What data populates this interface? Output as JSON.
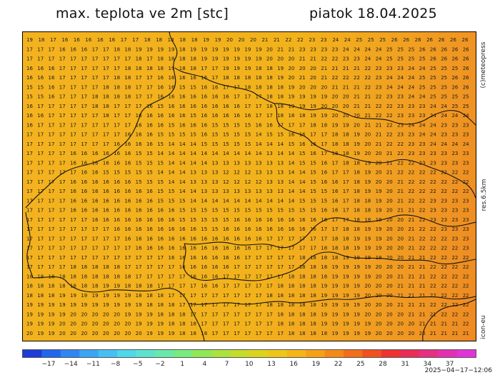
{
  "header": {
    "title": "max. teplota ve 2m [stc]",
    "date": "piatok 18.04.2025"
  },
  "side_labels": {
    "copyright": "(c)meteopress",
    "resolution": "res.6.5km",
    "model": "icon-eu"
  },
  "map": {
    "grid_rows": [
      "19 18 17 16 16 16 16 16 17 17 18 18 18 18 18 19 19 20 20 20 21 21 22 22 23 23 24 24 25 25 25 26 26 26 26 26 26 26",
      "17 17 17 16 16 16 17 17 18 18 19 19 19 19 18 19 19 19 19 19 19 19 20 21 21 23 23 23 23 24 24 24 24 25 25 25 26 26 26 26 26",
      "17 17 17 17 17 17 17 17 17 17 18 17 18 18 18 18 19 19 19 19 19 19 20 20 20 21 21 22 22 23 23 24 24 25 25 25 25 26 26 26 26",
      "16 16 16 17 17 17 17 17 17 18 18 18 18 19 18 18 17 17 19 19 19 18 18 19 20 20 20 21 21 21 21 22 23 23 23 24 24 25 25 25 26",
      "16 16 16 17 17 17 17 17 18 18 17 17 16 16 16 16 16 17 18 18 18 18 18 19 20 21 20 21 22 22 22 22 23 24 24 24 25 25 25 26 26",
      "15 15 16 17 17 17 17 18 18 18 17 17 16 16 15 15 16 16 17 17 18 18 18 18 19 20 20 20 21 21 21 22 23 24 24 24 25 25 25 26 26",
      "15 15 16 17 17 17 18 18 18 18 17 17 16 16 16 16 16 16 16 17 17 17 18 18 19 19 19 19 20 20 21 21 22 23 23 24 24 25 25 25 25",
      "16 17 17 17 17 17 18 18 17 17 17 16 15 16 16 16 16 16 16 16 17 17 18 18 19 19 19 20 20 20 21 21 22 22 23 23 23 24 24 25 25",
      "16 16 17 17 17 17 17 18 17 17 16 16 16 16 16 15 16 16 16 16 16 17 17 18 18 18 19 19 20 20 20 21 22 22 23 23 23 24 24 24 24",
      "16 17 17 17 17 17 17 17 17 17 16 16 16 15 16 16 16 15 15 15 15 16 16 17 17 17 18 18 19 19 20 21 21 22 23 24 24 24 23 23 23",
      "17 17 17 17 17 17 17 17 17 16 16 16 15 15 15 15 16 15 15 15 15 14 15 15 16 16 17 17 18 18 19 20 21 22 23 23 24 24 23 23 23",
      "17 17 17 17 17 17 17 17 16 16 16 16 15 14 14 14 15 15 15 15 15 14 14 14 15 16 16 17 18 18 19 20 21 22 22 23 23 24 24 24 24",
      "17 17 17 17 16 16 16 16 16 16 15 15 14 14 14 14 14 14 14 14 14 14 13 14 14 15 16 17 18 18 19 20 20 21 22 23 23 23 23 23 23",
      "17 17 17 17 16 16 16 16 16 16 15 15 15 14 14 14 14 13 13 13 13 13 13 13 14 15 15 16 17 18 18 19 20 21 22 22 23 23 23 23 23",
      "17 17 17 17 17 16 16 15 15 15 15 15 14 14 14 13 13 13 12 12 12 13 13 13 14 14 15 16 17 17 18 19 20 21 22 22 22 22 22 22 22",
      "17 17 17 17 16 16 16 16 16 16 15 15 15 14 14 13 13 13 12 12 12 12 13 13 14 14 15 16 16 17 18 19 20 20 21 22 22 22 22 22 22",
      "17 17 17 17 16 16 16 16 16 16 16 16 15 15 14 14 13 13 13 13 13 13 13 13 14 14 15 15 16 17 18 19 19 20 21 22 22 22 22 22 22",
      "17 17 17 17 16 16 16 16 16 16 16 16 15 15 15 14 14 14 14 14 14 14 14 14 14 15 15 15 16 17 18 18 19 20 21 22 22 23 23 23 23",
      "17 17 17 17 16 16 16 16 16 16 16 16 16 16 15 15 15 15 15 15 15 15 15 15 15 15 15 16 16 17 18 18 19 20 21 21 22 23 23 23 23",
      "17 17 17 17 17 17 16 16 16 16 16 16 16 16 15 15 15 15 15 16 16 16 16 16 16 16 16 16 17 17 18 18 19 20 20 21 22 23 23 23 23",
      "17 17 17 17 17 17 17 17 16 16 16 16 16 16 16 16 15 15 16 16 16 16 16 16 16 16 16 17 17 18 18 19 19 20 20 21 22 22 23 23 23",
      "17 17 17 17 17 17 17 17 17 16 16 16 16 16 16 16 16 16 16 16 16 16 17 17 17 17 17 17 18 18 19 19 19 20 20 21 22 22 22 23 23",
      "17 17 17 17 17 17 17 17 17 17 16 16 16 16 16 16 16 16 16 16 16 17 17 17 17 17 17 18 18 18 19 19 19 20 20 21 22 22 22 22 23",
      "17 17 17 17 17 17 17 17 17 17 17 17 17 16 16 16 16 16 16 16 17 17 17 17 17 18 18 18 18 19 19 19 19 20 20 21 21 22 22 22 22",
      "17 17 17 17 18 18 18 18 18 17 17 17 17 17 16 16 16 16 16 17 17 17 17 17 17 18 18 18 19 19 19 19 20 20 20 21 21 22 22 22 22",
      "18 18 18 18 18 18 18 18 18 18 17 17 17 17 17 16 16 16 17 17 17 17 17 17 18 18 18 18 19 19 19 19 20 20 21 21 21 22 22 22 22",
      "18 18 18 18 18 18 18 19 19 18 18 18 17 17 17 17 16 16 17 17 17 17 17 18 18 18 18 19 19 19 19 20 20 20 21 21 21 22 22 22 22",
      "18 18 18 19 19 19 19 19 19 19 18 18 18 17 17 17 17 17 17 17 17 17 18 18 18 18 18 19 19 19 19 20 20 20 21 21 21 22 22 22 22",
      "19 19 19 19 19 19 19 19 19 19 19 18 18 18 17 17 17 17 17 17 17 17 18 18 18 18 18 19 19 19 19 20 20 20 21 21 21 22 22 22 22",
      "19 19 19 19 20 20 20 20 20 19 19 19 18 18 18 17 17 17 17 17 17 17 17 18 18 18 18 19 19 19 19 20 20 20 20 21 21 21 22 22 22",
      "19 19 19 20 20 20 20 20 20 20 19 19 19 18 18 18 17 17 17 17 17 17 17 18 18 18 18 19 19 19 19 19 20 20 20 20 21 21 21 21 22",
      "20 19 19 20 20 20 20 20 20 20 20 19 19 19 18 18 18 17 17 17 17 17 17 17 18 18 18 18 19 19 19 19 20 20 20 20 20 21 21 21 21"
    ],
    "boundary_color": "#111111"
  },
  "legend": {
    "tick_labels": [
      "−17",
      "−14",
      "−11",
      "−8",
      "−5",
      "−2",
      "1",
      "4",
      "7",
      "10",
      "13",
      "16",
      "19",
      "22",
      "25",
      "28",
      "31",
      "34",
      "37"
    ],
    "colors": [
      "#1c3dd8",
      "#2266ee",
      "#2f86f3",
      "#3aa4f6",
      "#45bff5",
      "#4fd7ec",
      "#5be3cf",
      "#69e8aa",
      "#79ea7e",
      "#8fe855",
      "#abe23c",
      "#c6dc2c",
      "#dcd31f",
      "#eec618",
      "#f5b515",
      "#f7a016",
      "#f58817",
      "#f36d1a",
      "#f1501f",
      "#ee3330",
      "#ea2d55",
      "#e82d85",
      "#e52fb3",
      "#e134d8"
    ]
  },
  "footer": {
    "timestamp": "2025−04−17−12:06"
  }
}
